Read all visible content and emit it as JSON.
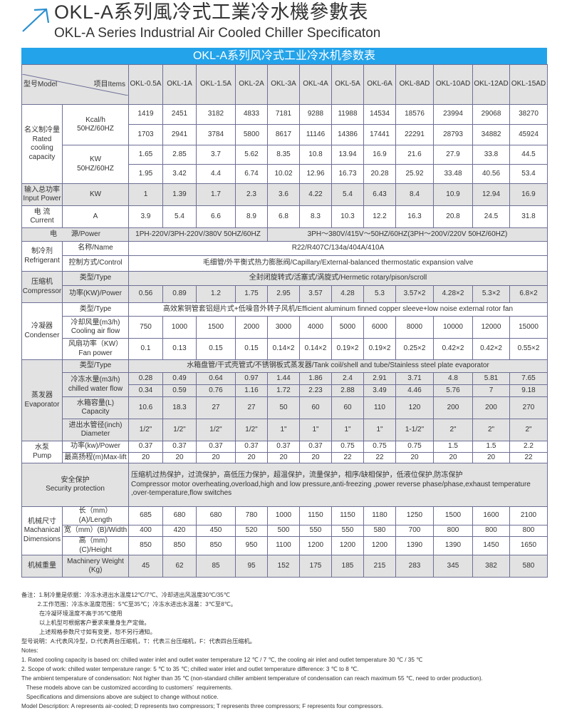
{
  "header": {
    "title_cn": "OKL-A系列風冷式工業冷水機參數表",
    "title_en": "OKL-A Series Industrial Air Cooled Chiller Specificaton",
    "icon": "arrow-up-right-icon",
    "accent_color": "#23a3ea"
  },
  "table": {
    "title": "OKL-A系列风冷式工业冷水机参数表",
    "model_label": "型号Model",
    "items_label": "项目Items",
    "models": [
      "OKL-0.5A",
      "OKL-1A",
      "OKL-1.5A",
      "OKL-2A",
      "OKL-3A",
      "OKL-4A",
      "OKL-5A",
      "OKL-6A",
      "OKL-8AD",
      "OKL-10AD",
      "OKL-12AD",
      "OKL-15AD"
    ],
    "rows": [
      {
        "group": {
          "text": "名义制冷量\nRated\ncooling\ncapacity",
          "rowspan": 4
        },
        "sub": {
          "text": "Kcal/h\n50HZ/60HZ",
          "rowspan": 2
        },
        "values": [
          "1419",
          "2451",
          "3182",
          "4833",
          "7181",
          "9288",
          "11988",
          "14534",
          "18576",
          "23994",
          "29068",
          "38270"
        ]
      },
      {
        "values": [
          "1703",
          "2941",
          "3784",
          "5800",
          "8617",
          "11146",
          "14386",
          "17441",
          "22291",
          "28793",
          "34882",
          "45924"
        ]
      },
      {
        "sub": {
          "text": "KW\n50HZ/60HZ",
          "rowspan": 2
        },
        "values": [
          "1.65",
          "2.85",
          "3.7",
          "5.62",
          "8.35",
          "10.8",
          "13.94",
          "16.9",
          "21.6",
          "27.9",
          "33.8",
          "44.5"
        ]
      },
      {
        "values": [
          "1.95",
          "3.42",
          "4.4",
          "6.74",
          "10.02",
          "12.96",
          "16.73",
          "20.28",
          "25.92",
          "33.48",
          "40.56",
          "53.4"
        ]
      },
      {
        "shaded": true,
        "group": {
          "text": "输入总功率\nInput Power"
        },
        "sub": {
          "text": "KW"
        },
        "values": [
          "1",
          "1.39",
          "1.7",
          "2.3",
          "3.6",
          "4.22",
          "5.4",
          "6.43",
          "8.4",
          "10.9",
          "12.94",
          "16.9"
        ]
      },
      {
        "group": {
          "text": "电 流\nCurrent"
        },
        "sub": {
          "text": "A"
        },
        "values": [
          "3.9",
          "5.4",
          "6.6",
          "8.9",
          "6.8",
          "8.3",
          "10.3",
          "12.2",
          "16.3",
          "20.8",
          "24.5",
          "31.8"
        ]
      },
      {
        "shaded": true,
        "label": "电　　源/Power",
        "spans": [
          {
            "text": "1PH-220V/3PH-220V/380V 50HZ/60HZ",
            "cols": 4
          },
          {
            "text": "3PH～380V/415V～50HZ/60HZ(3PH～200V/220V  50HZ/60HZ)",
            "cols": 8
          }
        ]
      },
      {
        "group": {
          "text": "制冷剂\nRefrigerant",
          "rowspan": 2
        },
        "sub": {
          "text": "名称/Name"
        },
        "spans": [
          {
            "text": "R22/R407C/134a/404A/410A",
            "cols": 12
          }
        ]
      },
      {
        "sub": {
          "text": "控制方式/Control"
        },
        "spans": [
          {
            "text": "毛细管/外平衡式热力膨胀阀/Capillary/External-balanced thermostatic expansion valve",
            "cols": 12
          }
        ]
      },
      {
        "shaded": true,
        "group": {
          "text": "压缩机\nCompressor",
          "rowspan": 2
        },
        "sub": {
          "text": "类型/Type"
        },
        "spans": [
          {
            "text": "全封闭旋转式/活塞式/涡旋式/Hermetic rotary/pison/scroll",
            "cols": 12
          }
        ]
      },
      {
        "shaded": true,
        "sub": {
          "text": "功率(KW)/Power"
        },
        "values": [
          "0.56",
          "0.89",
          "1.2",
          "1.75",
          "2.95",
          "3.57",
          "4.28",
          "5.3",
          "3.57×2",
          "4.28×2",
          "5.3×2",
          "6.8×2"
        ]
      },
      {
        "group": {
          "text": "冷凝器\nCondenser",
          "rowspan": 3
        },
        "sub": {
          "text": "类型/Type"
        },
        "spans": [
          {
            "text": "高效紫铜管套铝翅片式+低噪音外转子风机/Efficient aluminum finned copper sleeve+low noise external rotor fan",
            "cols": 12
          }
        ]
      },
      {
        "sub": {
          "text": "冷却风量(m3/h)\nCooling air flow"
        },
        "values": [
          "750",
          "1000",
          "1500",
          "2000",
          "3000",
          "4000",
          "5000",
          "6000",
          "8000",
          "10000",
          "12000",
          "15000"
        ]
      },
      {
        "sub": {
          "text": "风扇功率（KW）\nFan power"
        },
        "values": [
          "0.1",
          "0.13",
          "0.15",
          "0.15",
          "0.14×2",
          "0.14×2",
          "0.19×2",
          "0.19×2",
          "0.25×2",
          "0.42×2",
          "0.42×2",
          "0.55×2"
        ]
      },
      {
        "shaded": true,
        "group": {
          "text": "蒸发器\nEvaporator",
          "rowspan": 5
        },
        "sub": {
          "text": "类型/Type"
        },
        "spans": [
          {
            "text": "水箱盘管/干式壳管式/不锈钢板式蒸发器/Tank coil/shell and tube/Stainless steel plate evaporator",
            "cols": 12
          }
        ]
      },
      {
        "shaded": true,
        "sub": {
          "text": "冷冻水量(m3/h)\nchilled water flow",
          "rowspan": 2
        },
        "values": [
          "0.28",
          "0.49",
          "0.64",
          "0.97",
          "1.44",
          "1.86",
          "2.4",
          "2.91",
          "3.71",
          "4.8",
          "5.81",
          "7.65"
        ]
      },
      {
        "shaded": true,
        "values": [
          "0.34",
          "0.59",
          "0.76",
          "1.16",
          "1.72",
          "2.23",
          "2.88",
          "3.49",
          "4.46",
          "5.76",
          "7",
          "9.18"
        ]
      },
      {
        "shaded": true,
        "sub": {
          "text": "水箱容量(L)\nCapacity"
        },
        "values": [
          "10.6",
          "18.3",
          "27",
          "27",
          "50",
          "60",
          "60",
          "110",
          "120",
          "200",
          "200",
          "270"
        ]
      },
      {
        "shaded": true,
        "sub": {
          "text": "进出水管径(inch)\nDiameter"
        },
        "values": [
          "1/2\"",
          "1/2\"",
          "1/2\"",
          "1/2\"",
          "1\"",
          "1\"",
          "1\"",
          "1\"",
          "1-1/2\"",
          "2\"",
          "2\"",
          "2\""
        ]
      },
      {
        "group": {
          "text": "水泵\nPump",
          "rowspan": 2
        },
        "sub": {
          "text": "功率(kw)/Power"
        },
        "values": [
          "0.37",
          "0.37",
          "0.37",
          "0.37",
          "0.37",
          "0.37",
          "0.75",
          "0.75",
          "0.75",
          "1.5",
          "1.5",
          "2.2"
        ]
      },
      {
        "sub": {
          "text": "最高扬程(m)Max-lift"
        },
        "values": [
          "20",
          "20",
          "20",
          "20",
          "20",
          "20",
          "22",
          "22",
          "20",
          "20",
          "20",
          "22"
        ]
      },
      {
        "shaded": true,
        "label": "安全保护\nSecurity protection",
        "spans": [
          {
            "text": "压缩机过热保护，过流保护，高低压力保护，超温保护，流量保护，相序/缺相保护，低液位保护,防冻保护\nCompressor motor overheating,overload,high and low pressure,anti-freezing ,power reverse phase/phase,exhaust temperature ,over-temperature,flow switches",
            "cols": 12,
            "align": "left"
          }
        ]
      },
      {
        "group": {
          "text": "机械尺寸\nMachanical\nDimensions",
          "rowspan": 3
        },
        "sub": {
          "text": "长（mm）(A)/Length"
        },
        "values": [
          "685",
          "680",
          "680",
          "780",
          "1000",
          "1150",
          "1150",
          "1180",
          "1250",
          "1500",
          "1600",
          "2100"
        ]
      },
      {
        "sub": {
          "text": "宽（mm）(B)/Width"
        },
        "values": [
          "400",
          "420",
          "450",
          "520",
          "500",
          "550",
          "550",
          "580",
          "700",
          "800",
          "800",
          "800"
        ]
      },
      {
        "sub": {
          "text": "高（mm）(C)/Height"
        },
        "values": [
          "850",
          "850",
          "850",
          "950",
          "1100",
          "1200",
          "1200",
          "1200",
          "1390",
          "1390",
          "1450",
          "1650"
        ]
      },
      {
        "shaded": true,
        "group": {
          "text": "机械重量"
        },
        "sub": {
          "text": "Machinery Weight\n(Kg)"
        },
        "values": [
          "45",
          "62",
          "85",
          "95",
          "152",
          "175",
          "185",
          "215",
          "283",
          "345",
          "382",
          "580"
        ]
      }
    ]
  },
  "notes": [
    "备注：1.制冷量是依据：冷冻水进出水温度12℃/7℃、冷却进出风温度30℃/35℃",
    "          2.工作范围：冷冻水温度范围：5℃至35℃；冷冻水进出水温差：3℃至8℃。",
    "           在冷凝环境温度不高于35℃使用",
    "           以上机型可根据客户要求来量身生产定做。",
    "           上述规格参数尺寸如有变更，恕不另行通知。",
    "型号说明：A:代表风冷型，D:代表两台压缩机，T：代表三台压缩机，F：代表四台压缩机。",
    "Notes:",
    "1. Rated cooling capacity is based on: chilled water inlet and outlet water temperature 12 ℃ / 7 ℃, the cooling air inlet and outlet temperature 30 ℃ / 35 ℃",
    "2. Scope of work: chilled water temperature range: 5 ℃ to 35 ℃; chilled water inlet and outlet temperature difference: 3 ℃ to 8 ℃.",
    "The ambient temperature of condensation: Not higher than 35 ℃ (non-standard chiller ambient temperature of condensation can reach maximum 55 ℃, need to order production).",
    "   These models above can be customized according to customers’  requirements.",
    "   Specifications and dimensions above are subject to change without notice.",
    "Model Description: A represents air-cooled; D represents two compressors; T represents three compressors; F represents four compressors."
  ]
}
